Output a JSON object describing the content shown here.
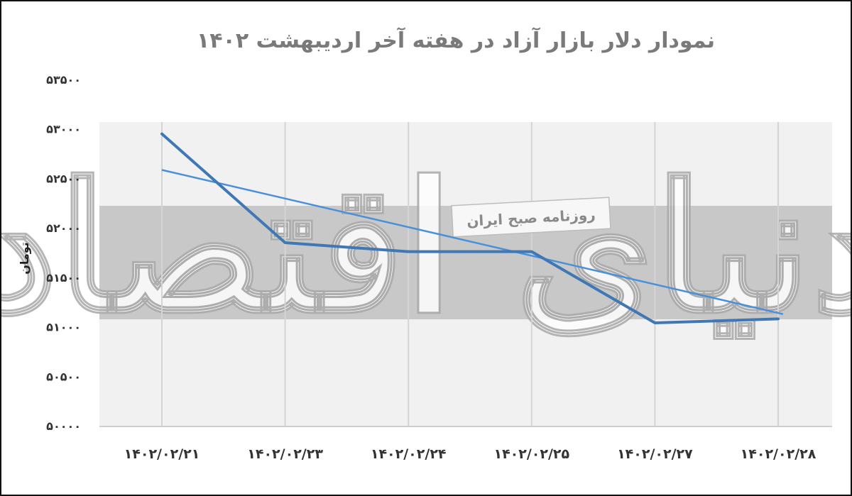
{
  "chart_data": {
    "type": "line",
    "title": "نمودار دلار بازار آزاد در هفته آخر اردیبهشت ۱۴۰۲",
    "xlabel": "",
    "ylabel": "تومان",
    "categories": [
      "۱۴۰۲/۰۲/۲۱",
      "۱۴۰۲/۰۲/۲۳",
      "۱۴۰۲/۰۲/۲۴",
      "۱۴۰۲/۰۲/۲۵",
      "۱۴۰۲/۰۲/۲۷",
      "۱۴۰۲/۰۲/۲۸"
    ],
    "yticks": [
      {
        "value": 50000,
        "label": "۵۰۰۰۰"
      },
      {
        "value": 50500,
        "label": "۵۰۵۰۰"
      },
      {
        "value": 51000,
        "label": "۵۱۰۰۰"
      },
      {
        "value": 51500,
        "label": "۵۱۵۰۰"
      },
      {
        "value": 52000,
        "label": "۵۲۰۰۰"
      },
      {
        "value": 52500,
        "label": "۵۲۵۰۰"
      },
      {
        "value": 53000,
        "label": "۵۳۰۰۰"
      },
      {
        "value": 53500,
        "label": "۵۳۵۰۰"
      }
    ],
    "ylim": [
      50000,
      53500
    ],
    "grid": "vertical",
    "series": [
      {
        "values": [
          52950,
          51850,
          51760,
          51760,
          51040,
          51080
        ],
        "color": "#3f78b5"
      }
    ],
    "trendline": {
      "values": [
        52580,
        52290,
        52000,
        51720,
        51430,
        51140
      ],
      "color": "#4a90d9"
    },
    "annotation": "روزنامه صبح ایران",
    "watermark": "دنیای اقتصاد"
  },
  "colors": {
    "title": "#7a7a7a",
    "band_light": "#f1f1f1",
    "band_dark": "#c8c8c8",
    "grid": "#d4d4d4",
    "line": "#3f78b5",
    "trend": "#4a90d9"
  }
}
